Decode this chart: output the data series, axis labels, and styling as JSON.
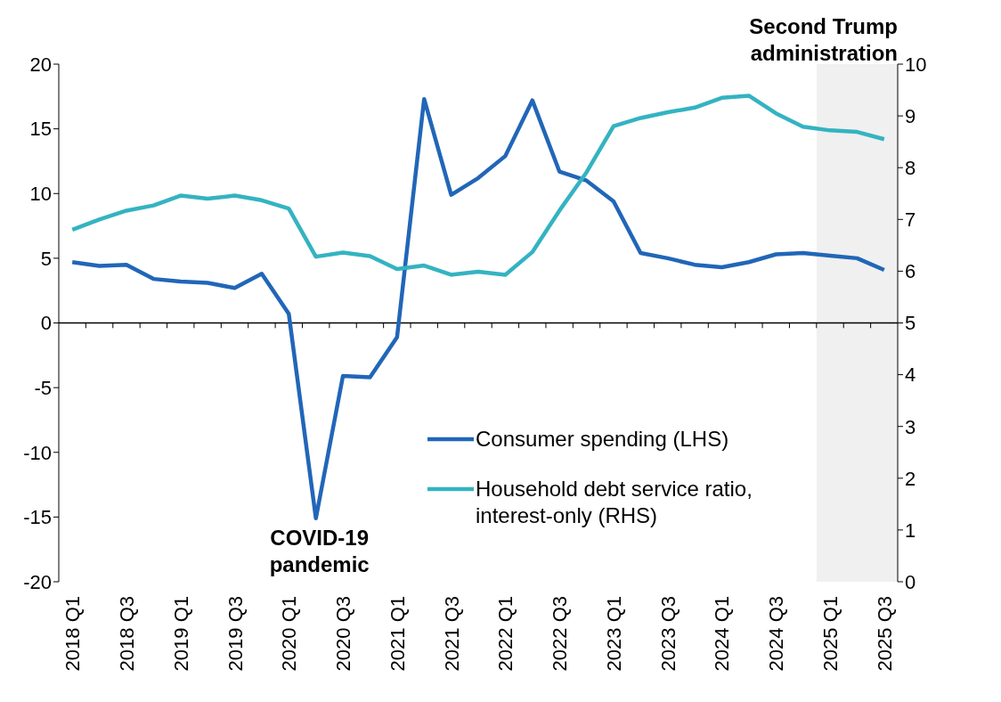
{
  "chart_data": {
    "type": "line",
    "categories": [
      "2018 Q1",
      null,
      "2018 Q3",
      null,
      "2019 Q1",
      null,
      "2019 Q3",
      null,
      "2020 Q1",
      null,
      "2020 Q3",
      null,
      "2021 Q1",
      null,
      "2021 Q3",
      null,
      "2022 Q1",
      null,
      "2022 Q3",
      null,
      "2023 Q1",
      null,
      "2023 Q3",
      null,
      "2024 Q1",
      null,
      "2024 Q3",
      null,
      "2025 Q1",
      null,
      "2025 Q3"
    ],
    "series": [
      {
        "name": "Consumer spending (LHS)",
        "color": "#2166b8",
        "values": [
          4.7,
          4.4,
          4.5,
          3.4,
          3.2,
          3.1,
          2.7,
          3.8,
          0.7,
          -15.1,
          -4.1,
          -4.2,
          -1.1,
          17.3,
          9.9,
          11.2,
          12.9,
          17.2,
          11.7,
          11.0,
          9.4,
          5.4,
          5.0,
          4.5,
          4.3,
          4.7,
          5.3,
          5.4,
          5.2,
          5.0,
          4.1
        ]
      },
      {
        "name": "Household debt service ratio, interest-only (RHS)",
        "color": "#34b3c1",
        "axis": "y2",
        "values": [
          6.8,
          7.0,
          7.17,
          7.27,
          7.46,
          7.4,
          7.46,
          7.37,
          7.21,
          6.28,
          6.36,
          6.29,
          6.04,
          6.11,
          5.93,
          5.99,
          5.93,
          6.37,
          7.17,
          7.91,
          8.8,
          8.96,
          9.07,
          9.16,
          9.35,
          9.39,
          9.05,
          8.79,
          8.72,
          8.69,
          8.55
        ]
      }
    ],
    "ylim": [
      -20,
      20
    ],
    "yticks": [
      -20,
      -15,
      -10,
      -5,
      0,
      5,
      10,
      15,
      20
    ],
    "y2lim": [
      0,
      10
    ],
    "y2ticks": [
      0,
      1,
      2,
      3,
      4,
      5,
      6,
      7,
      8,
      9,
      10
    ],
    "ref_lines": [
      {
        "axis": "y",
        "value": 0,
        "color": "#000000"
      }
    ],
    "bands": [
      {
        "axis": "x",
        "from": "2025 Q1",
        "to": "2025 Q3",
        "label": "Second Trump administration",
        "color": "#f0f0f0"
      }
    ],
    "annotations": [
      {
        "text": "COVID-19 pandemic",
        "y": -15.1
      }
    ],
    "legend": "bottom",
    "grid": false,
    "marker": "none",
    "line_style": "solid"
  }
}
